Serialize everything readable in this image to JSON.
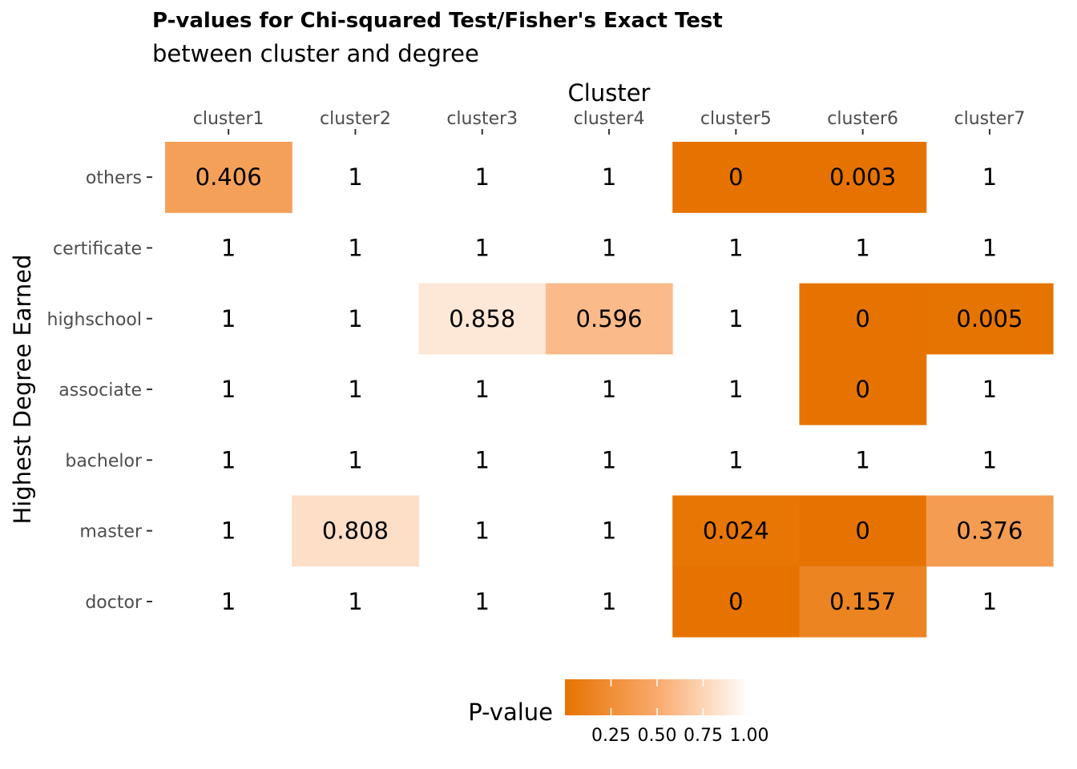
{
  "chart_data": {
    "type": "heatmap",
    "title": "P-values for Chi-squared Test/Fisher's Exact Test",
    "subtitle": "between cluster and degree",
    "xlabel": "Cluster",
    "ylabel": "Highest Degree Earned",
    "x_categories": [
      "cluster1",
      "cluster2",
      "cluster3",
      "cluster4",
      "cluster5",
      "cluster6",
      "cluster7"
    ],
    "y_categories": [
      "others",
      "certificate",
      "highschool",
      "associate",
      "bachelor",
      "master",
      "doctor"
    ],
    "values": [
      [
        0.406,
        1,
        1,
        1,
        0,
        0.003,
        1
      ],
      [
        1,
        1,
        1,
        1,
        1,
        1,
        1
      ],
      [
        1,
        1,
        0.858,
        0.596,
        1,
        0,
        0.005
      ],
      [
        1,
        1,
        1,
        1,
        1,
        0,
        1
      ],
      [
        1,
        1,
        1,
        1,
        1,
        1,
        1
      ],
      [
        1,
        0.808,
        1,
        1,
        0.024,
        0,
        0.376
      ],
      [
        1,
        1,
        1,
        1,
        0,
        0.157,
        1
      ]
    ],
    "labels": [
      [
        "0.406",
        "1",
        "1",
        "1",
        "0",
        "0.003",
        "1"
      ],
      [
        "1",
        "1",
        "1",
        "1",
        "1",
        "1",
        "1"
      ],
      [
        "1",
        "1",
        "0.858",
        "0.596",
        "1",
        "0",
        "0.005"
      ],
      [
        "1",
        "1",
        "1",
        "1",
        "1",
        "0",
        "1"
      ],
      [
        "1",
        "1",
        "1",
        "1",
        "1",
        "1",
        "1"
      ],
      [
        "1",
        "0.808",
        "1",
        "1",
        "0.024",
        "0",
        "0.376"
      ],
      [
        "1",
        "1",
        "1",
        "1",
        "0",
        "0.157",
        "1"
      ]
    ],
    "x_axis_position": "top",
    "grid": false,
    "legend": {
      "title": "P-value",
      "position": "bottom",
      "ticks": [
        0.25,
        0.5,
        0.75,
        1.0
      ],
      "tick_labels": [
        "0.25",
        "0.50",
        "0.75",
        "1.00"
      ],
      "range": [
        0,
        1
      ]
    },
    "colors": {
      "low": "#e67300",
      "high": "#ffffff"
    }
  }
}
